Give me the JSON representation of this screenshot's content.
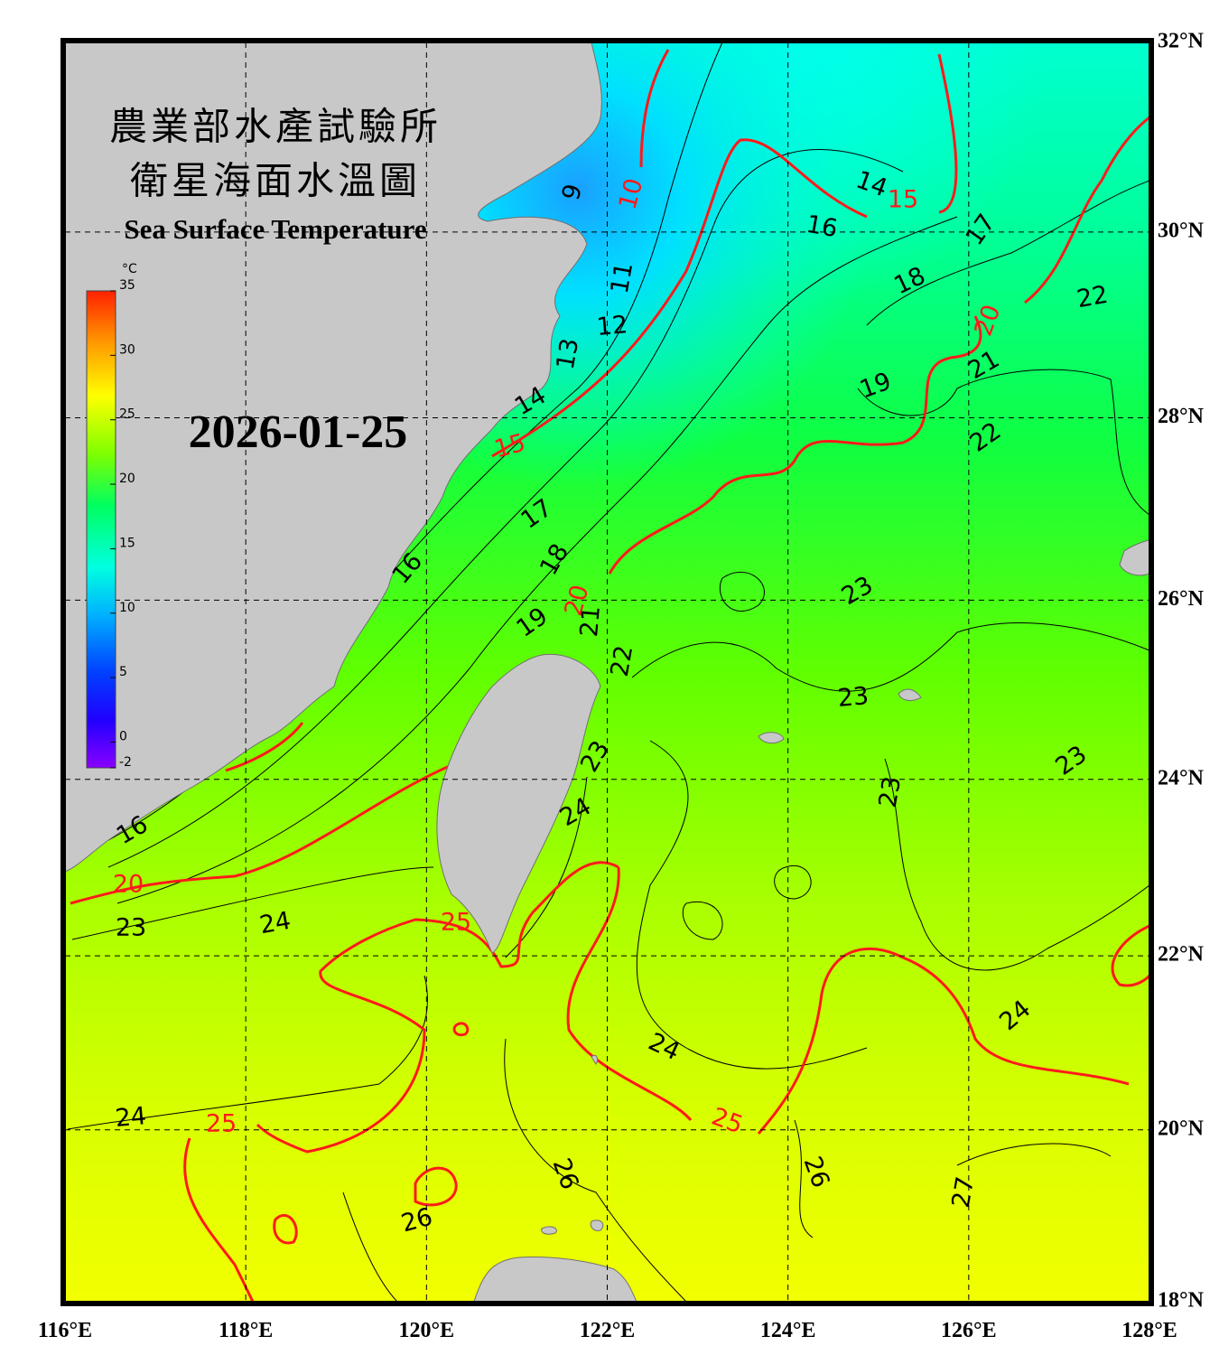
{
  "header": {
    "title_zh_1": "農業部水產試驗所",
    "title_zh_2": "衛星海面水溫圖",
    "title_en": "Sea Surface Temperature",
    "date": "2026-01-25"
  },
  "colorbar": {
    "unit": "°C",
    "range": [
      -2,
      35
    ],
    "ticks": [
      -2,
      0,
      5,
      10,
      15,
      20,
      25,
      30,
      35
    ]
  },
  "map": {
    "lon_range": [
      116,
      128
    ],
    "lat_range": [
      18,
      32
    ],
    "lon_ticks": [
      {
        "value": 116,
        "label": "116°E"
      },
      {
        "value": 118,
        "label": "118°E"
      },
      {
        "value": 120,
        "label": "120°E"
      },
      {
        "value": 122,
        "label": "122°E"
      },
      {
        "value": 124,
        "label": "124°E"
      },
      {
        "value": 126,
        "label": "126°E"
      },
      {
        "value": 128,
        "label": "128°E"
      }
    ],
    "lat_ticks": [
      {
        "value": 18,
        "label": "18°N"
      },
      {
        "value": 20,
        "label": "20°N"
      },
      {
        "value": 22,
        "label": "22°N"
      },
      {
        "value": 24,
        "label": "24°N"
      },
      {
        "value": 26,
        "label": "26°N"
      },
      {
        "value": 28,
        "label": "28°N"
      },
      {
        "value": 30,
        "label": "30°N"
      },
      {
        "value": 32,
        "label": "32°N"
      }
    ],
    "major_isotherm_labels": [
      10,
      15,
      20,
      15,
      20,
      20,
      25,
      25,
      25
    ],
    "minor_isotherm_labels": [
      9,
      14,
      16,
      17,
      18,
      11,
      12,
      13,
      14,
      22,
      21,
      19,
      22,
      17,
      18,
      16,
      19,
      21,
      22,
      23,
      23,
      23,
      23,
      23,
      24,
      16,
      24,
      23,
      24,
      24,
      24,
      26,
      26,
      26,
      27
    ]
  }
}
